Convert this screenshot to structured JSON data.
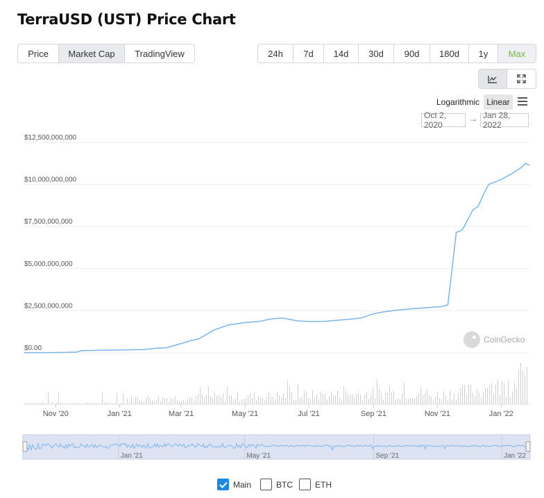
{
  "page": {
    "title": "TerraUSD (UST) Price Chart"
  },
  "view_tabs": [
    {
      "label": "Price",
      "active": false
    },
    {
      "label": "Market Cap",
      "active": true
    },
    {
      "label": "TradingView",
      "active": false
    }
  ],
  "range_tabs": [
    {
      "label": "24h"
    },
    {
      "label": "7d"
    },
    {
      "label": "14d"
    },
    {
      "label": "30d"
    },
    {
      "label": "90d"
    },
    {
      "label": "180d"
    },
    {
      "label": "1y"
    },
    {
      "label": "Max",
      "active": true
    }
  ],
  "toolbar": {
    "chart_icon": "line-chart-icon",
    "expand_icon": "expand-icon",
    "menu_icon": "hamburger-menu-icon"
  },
  "scale_options": {
    "logarithmic": "Logarithmic",
    "linear": "Linear",
    "selected": "Linear"
  },
  "date_range": {
    "from": "Oct 2, 2020",
    "arrow": "→",
    "to": "Jan 28, 2022"
  },
  "watermark": "CoinGecko",
  "colors": {
    "line": "#7cb5ec",
    "accent_max": "#7cb342",
    "checkbox": "#1e88e5",
    "navigator_fill": "#dde3f3"
  },
  "legend": [
    {
      "label": "Main",
      "checked": true
    },
    {
      "label": "BTC",
      "checked": false
    },
    {
      "label": "ETH",
      "checked": false
    }
  ],
  "chart_data": {
    "type": "line",
    "title": "",
    "xlabel": "",
    "ylabel": "",
    "x_range": [
      "2020-10-02",
      "2022-01-28"
    ],
    "ylim": [
      0,
      12500000000
    ],
    "y_ticks": [
      {
        "value": 0,
        "label": "$0.00"
      },
      {
        "value": 2500000000,
        "label": "$2,500,000,000"
      },
      {
        "value": 5000000000,
        "label": "$5,000,000,000"
      },
      {
        "value": 7500000000,
        "label": "$7,500,000,000"
      },
      {
        "value": 10000000000,
        "label": "$10,000,000,000"
      },
      {
        "value": 12500000000,
        "label": "$12,500,000,000"
      }
    ],
    "x_ticks": [
      {
        "date": "2020-11-01",
        "label": "Nov '20"
      },
      {
        "date": "2021-01-01",
        "label": "Jan '21"
      },
      {
        "date": "2021-03-01",
        "label": "Mar '21"
      },
      {
        "date": "2021-05-01",
        "label": "May '21"
      },
      {
        "date": "2021-07-01",
        "label": "Jul '21"
      },
      {
        "date": "2021-09-01",
        "label": "Sep '21"
      },
      {
        "date": "2021-11-01",
        "label": "Nov '21"
      },
      {
        "date": "2022-01-01",
        "label": "Jan '22"
      }
    ],
    "navigator_ticks": [
      {
        "date": "2021-01-01",
        "label": "Jan '21"
      },
      {
        "date": "2021-05-01",
        "label": "May '21"
      },
      {
        "date": "2021-09-01",
        "label": "Sep '21"
      },
      {
        "date": "2022-01-01",
        "label": "Jan '22"
      }
    ],
    "grid": true,
    "legend_position": "bottom-center",
    "series": [
      {
        "name": "Main",
        "points": [
          [
            "2020-10-02",
            10000000
          ],
          [
            "2020-11-01",
            15000000
          ],
          [
            "2020-11-21",
            40000000
          ],
          [
            "2020-11-26",
            130000000
          ],
          [
            "2020-12-15",
            150000000
          ],
          [
            "2021-01-01",
            170000000
          ],
          [
            "2021-01-25",
            200000000
          ],
          [
            "2021-02-05",
            280000000
          ],
          [
            "2021-02-15",
            300000000
          ],
          [
            "2021-02-25",
            480000000
          ],
          [
            "2021-03-10",
            720000000
          ],
          [
            "2021-03-18",
            830000000
          ],
          [
            "2021-04-01",
            1350000000
          ],
          [
            "2021-04-15",
            1650000000
          ],
          [
            "2021-05-01",
            1800000000
          ],
          [
            "2021-05-15",
            1870000000
          ],
          [
            "2021-05-25",
            2000000000
          ],
          [
            "2021-06-05",
            2070000000
          ],
          [
            "2021-06-20",
            1900000000
          ],
          [
            "2021-07-01",
            1860000000
          ],
          [
            "2021-07-15",
            1870000000
          ],
          [
            "2021-07-25",
            1920000000
          ],
          [
            "2021-08-10",
            2000000000
          ],
          [
            "2021-08-20",
            2070000000
          ],
          [
            "2021-09-01",
            2320000000
          ],
          [
            "2021-09-10",
            2430000000
          ],
          [
            "2021-09-25",
            2550000000
          ],
          [
            "2021-10-10",
            2630000000
          ],
          [
            "2021-10-25",
            2700000000
          ],
          [
            "2021-11-05",
            2750000000
          ],
          [
            "2021-11-11",
            2850000000
          ],
          [
            "2021-11-16",
            5500000000
          ],
          [
            "2021-11-19",
            7150000000
          ],
          [
            "2021-11-25",
            7300000000
          ],
          [
            "2021-12-05",
            8500000000
          ],
          [
            "2021-12-10",
            8700000000
          ],
          [
            "2021-12-15",
            9400000000
          ],
          [
            "2021-12-20",
            10000000000
          ],
          [
            "2022-01-01",
            10300000000
          ],
          [
            "2022-01-10",
            10600000000
          ],
          [
            "2022-01-20",
            11000000000
          ],
          [
            "2022-01-24",
            11250000000
          ],
          [
            "2022-01-28",
            11150000000
          ]
        ]
      }
    ]
  }
}
